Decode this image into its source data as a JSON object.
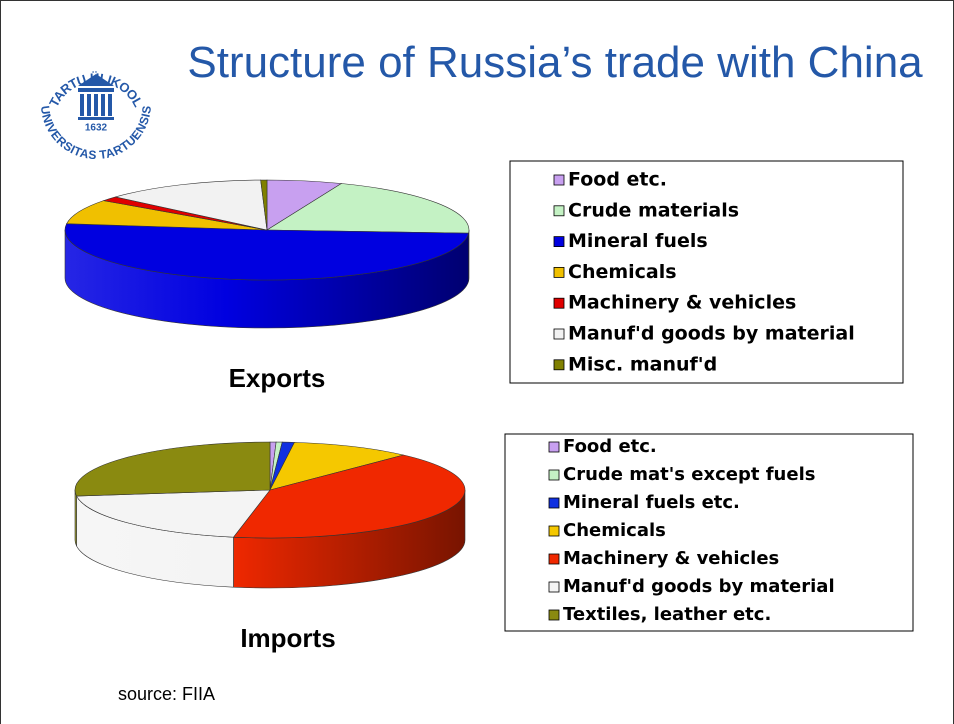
{
  "title": "Structure of Russia’s trade with China",
  "source": "source: FIIA",
  "logo": {
    "top": "TARTU ÜLIKOOL",
    "bottom": "UNIVERSITAS TARTUENSIS",
    "year": "1632"
  },
  "chart_data": [
    {
      "type": "pie",
      "title": "Exports",
      "categories": [
        "Food etc.",
        "Crude materials",
        "Mineral fuels",
        "Chemicals",
        "Machinery & vehicles",
        "Manuf'd goods by material",
        "Misc. manuf'd"
      ],
      "values": [
        6,
        20,
        51,
        8,
        1.5,
        13,
        0.5
      ],
      "colors": [
        "#c8a0f0",
        "#c4f2c4",
        "#0000e0",
        "#f0c000",
        "#e00000",
        "#f2f2f2",
        "#808000"
      ]
    },
    {
      "type": "pie",
      "title": "Imports",
      "categories": [
        "Food etc.",
        "Crude mat's except fuels",
        "Mineral fuels etc.",
        "Chemicals",
        "Machinery & vehicles",
        "Manuf'd goods by material",
        "Textiles, leather etc."
      ],
      "values": [
        0.5,
        0.5,
        1,
        10,
        41,
        20,
        27
      ],
      "colors": [
        "#c8a0f0",
        "#c4f2c4",
        "#1030e0",
        "#f5c800",
        "#f02800",
        "#f4f4f4",
        "#8a8a10"
      ]
    }
  ]
}
